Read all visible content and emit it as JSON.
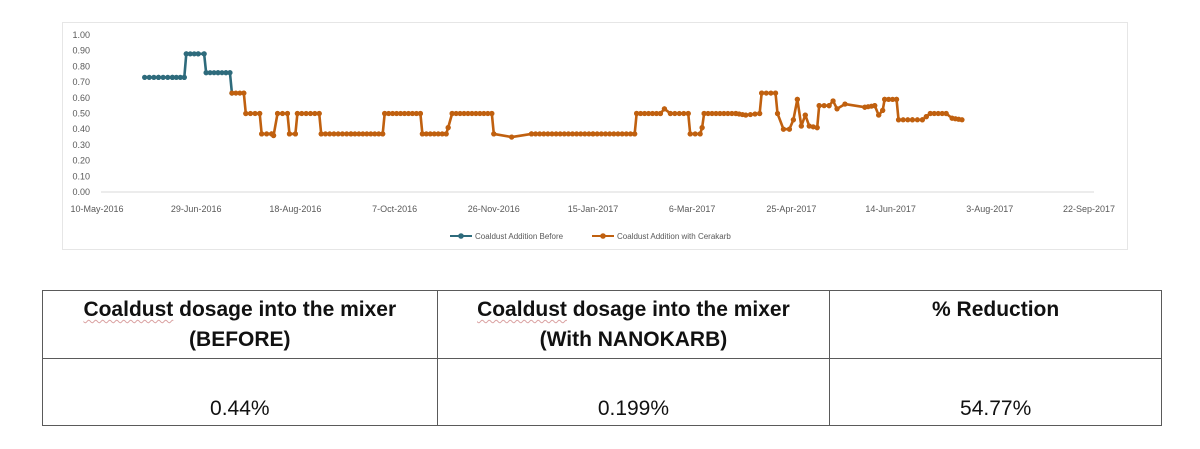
{
  "chart_data": {
    "type": "line",
    "title": "",
    "xlabel": "",
    "ylabel": "",
    "ylim": [
      0,
      1.0
    ],
    "y_ticks": [
      "0.00",
      "0.10",
      "0.20",
      "0.30",
      "0.40",
      "0.50",
      "0.60",
      "0.70",
      "0.80",
      "0.90",
      "1.00"
    ],
    "x_ticks": [
      "10-May-2016",
      "29-Jun-2016",
      "18-Aug-2016",
      "7-Oct-2016",
      "26-Nov-2016",
      "15-Jan-2017",
      "6-Mar-2017",
      "25-Apr-2017",
      "14-Jun-2017",
      "3-Aug-2017",
      "22-Sep-2017"
    ],
    "grid": false,
    "legend_position": "bottom",
    "series": [
      {
        "name": "Coaldust Addition  Before",
        "color": "#2e6b7c",
        "points": [
          [
            "2016-06-03",
            0.73
          ],
          [
            "2016-06-10",
            0.73
          ],
          [
            "2016-06-17",
            0.73
          ],
          [
            "2016-06-23",
            0.73
          ],
          [
            "2016-06-24",
            0.88
          ],
          [
            "2016-06-30",
            0.88
          ],
          [
            "2016-07-03",
            0.88
          ],
          [
            "2016-07-04",
            0.76
          ],
          [
            "2016-07-10",
            0.76
          ],
          [
            "2016-07-14",
            0.76
          ],
          [
            "2016-07-16",
            0.76
          ],
          [
            "2016-07-17",
            0.63
          ]
        ]
      },
      {
        "name": "Coaldust Addition  with Cerakarb",
        "color": "#c0600f",
        "points": [
          [
            "2016-07-17",
            0.63
          ],
          [
            "2016-07-23",
            0.63
          ],
          [
            "2016-07-24",
            0.5
          ],
          [
            "2016-07-31",
            0.5
          ],
          [
            "2016-08-01",
            0.37
          ],
          [
            "2016-08-06",
            0.37
          ],
          [
            "2016-08-07",
            0.36
          ],
          [
            "2016-08-09",
            0.5
          ],
          [
            "2016-08-14",
            0.5
          ],
          [
            "2016-08-15",
            0.37
          ],
          [
            "2016-08-18",
            0.37
          ],
          [
            "2016-08-19",
            0.5
          ],
          [
            "2016-08-30",
            0.5
          ],
          [
            "2016-08-31",
            0.37
          ],
          [
            "2016-09-15",
            0.37
          ],
          [
            "2016-10-01",
            0.37
          ],
          [
            "2016-10-02",
            0.5
          ],
          [
            "2016-10-20",
            0.5
          ],
          [
            "2016-10-21",
            0.37
          ],
          [
            "2016-11-02",
            0.37
          ],
          [
            "2016-11-03",
            0.41
          ],
          [
            "2016-11-05",
            0.5
          ],
          [
            "2016-11-25",
            0.5
          ],
          [
            "2016-11-26",
            0.37
          ],
          [
            "2016-12-05",
            0.35
          ],
          [
            "2016-12-15",
            0.37
          ],
          [
            "2017-01-15",
            0.37
          ],
          [
            "2017-02-05",
            0.37
          ],
          [
            "2017-02-06",
            0.5
          ],
          [
            "2017-02-18",
            0.5
          ],
          [
            "2017-02-20",
            0.53
          ],
          [
            "2017-02-23",
            0.5
          ],
          [
            "2017-03-04",
            0.5
          ],
          [
            "2017-03-05",
            0.37
          ],
          [
            "2017-03-10",
            0.37
          ],
          [
            "2017-03-11",
            0.41
          ],
          [
            "2017-03-12",
            0.5
          ],
          [
            "2017-03-28",
            0.5
          ],
          [
            "2017-04-02",
            0.49
          ],
          [
            "2017-04-09",
            0.5
          ],
          [
            "2017-04-10",
            0.63
          ],
          [
            "2017-04-17",
            0.63
          ],
          [
            "2017-04-18",
            0.5
          ],
          [
            "2017-04-21",
            0.4
          ],
          [
            "2017-04-24",
            0.4
          ],
          [
            "2017-04-26",
            0.46
          ],
          [
            "2017-04-28",
            0.59
          ],
          [
            "2017-04-30",
            0.42
          ],
          [
            "2017-05-02",
            0.49
          ],
          [
            "2017-05-04",
            0.42
          ],
          [
            "2017-05-08",
            0.41
          ],
          [
            "2017-05-09",
            0.55
          ],
          [
            "2017-05-14",
            0.55
          ],
          [
            "2017-05-16",
            0.58
          ],
          [
            "2017-05-18",
            0.53
          ],
          [
            "2017-05-22",
            0.56
          ],
          [
            "2017-06-01",
            0.54
          ],
          [
            "2017-06-06",
            0.55
          ],
          [
            "2017-06-08",
            0.49
          ],
          [
            "2017-06-10",
            0.52
          ],
          [
            "2017-06-11",
            0.59
          ],
          [
            "2017-06-17",
            0.59
          ],
          [
            "2017-06-18",
            0.46
          ],
          [
            "2017-06-25",
            0.46
          ],
          [
            "2017-06-30",
            0.46
          ],
          [
            "2017-07-02",
            0.48
          ],
          [
            "2017-07-04",
            0.5
          ],
          [
            "2017-07-12",
            0.5
          ],
          [
            "2017-07-15",
            0.47
          ],
          [
            "2017-07-20",
            0.46
          ]
        ]
      }
    ]
  },
  "legend": {
    "items": [
      {
        "label": "Coaldust Addition  Before",
        "color": "#2e6b7c"
      },
      {
        "label": "Coaldust Addition  with Cerakarb",
        "color": "#c0600f"
      }
    ]
  },
  "table": {
    "headers": [
      {
        "line1_underlined": "Coaldust",
        "line1_rest": " dosage into the mixer",
        "line2": "(BEFORE)"
      },
      {
        "line1_underlined": "Coaldust",
        "line1_rest": " dosage into the mixer",
        "line2": "(With NANOKARB)"
      },
      {
        "line1_underlined": "",
        "line1_rest": "% Reduction",
        "line2": ""
      }
    ],
    "values": [
      "0.44%",
      "0.199%",
      "54.77%"
    ]
  }
}
